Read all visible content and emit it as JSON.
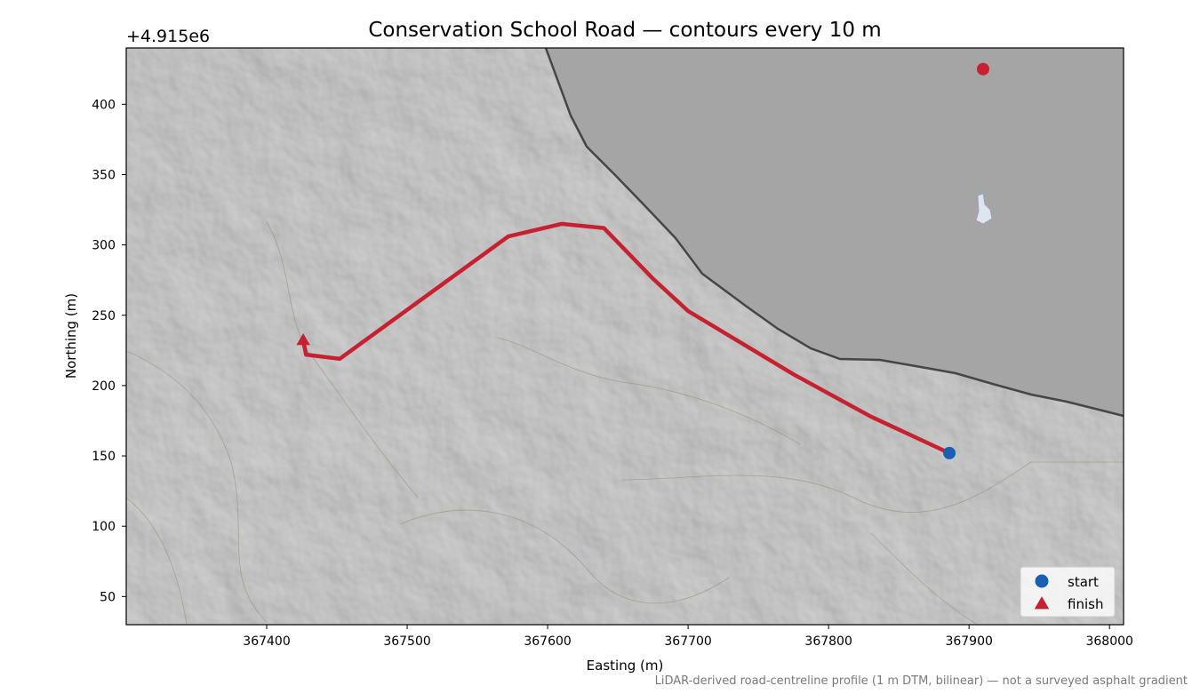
{
  "chart_data": {
    "type": "line",
    "title": "Conservation School Road — contours every 10 m",
    "xlabel": "Easting (m)",
    "ylabel": "Northing (m)",
    "y_offset_label": "+4.915e6",
    "xlim": [
      367300,
      368010
    ],
    "ylim": [
      30,
      440
    ],
    "xticks": [
      367400,
      367500,
      367600,
      367700,
      367800,
      367900,
      368000
    ],
    "yticks": [
      50,
      100,
      150,
      200,
      250,
      300,
      350,
      400
    ],
    "caption": "LiDAR-derived road-centreline profile (1 m DTM, bilinear) — not a surveyed asphalt gradient",
    "background": "shaded-relief hillshade with water area to the north-east",
    "series": [
      {
        "type": "line",
        "color": "#c62130",
        "x": [
          367886,
          367830,
          367775,
          367700,
          367675,
          367640,
          367610,
          367572,
          367452,
          367428,
          367426
        ],
        "y": [
          152,
          178,
          208,
          253,
          276,
          312,
          315,
          306,
          219,
          222,
          232
        ]
      }
    ],
    "markers": [
      {
        "name": "start",
        "shape": "circle",
        "color": "#1a5fb4",
        "x": 367886,
        "y": 152
      },
      {
        "name": "finish",
        "shape": "triangle",
        "color": "#c62130",
        "x": 367426,
        "y": 232
      },
      {
        "name": "",
        "shape": "circle",
        "color": "#c62130",
        "x": 367910,
        "y": 425
      }
    ],
    "legend": {
      "position": "bottom-right",
      "entries": [
        {
          "label": "start",
          "shape": "circle",
          "color": "#1a5fb4"
        },
        {
          "label": "finish",
          "shape": "triangle",
          "color": "#c62130"
        }
      ]
    },
    "colors": {
      "water": "#a5a5a5",
      "terrain": "#a8a8a8",
      "contour": "#8a8866"
    }
  }
}
